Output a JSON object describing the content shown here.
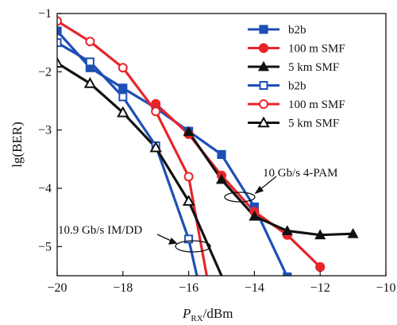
{
  "chart_data": {
    "type": "line",
    "title": "",
    "xlabel": {
      "main": "P",
      "sub": "RX",
      "rest": "/dBm"
    },
    "ylabel": "lg(BER)",
    "xlim": [
      -20,
      -10
    ],
    "ylim": [
      -5.5,
      -1
    ],
    "xticks": [
      -20,
      -18,
      -16,
      -14,
      -12,
      -10
    ],
    "yticks": [
      -1,
      -2,
      -3,
      -4,
      -5
    ],
    "grid": false,
    "legend": "top-right",
    "series": [
      {
        "name": "b2b",
        "color": "#1f4fb5",
        "marker": "square",
        "filled": true,
        "x": [
          -20,
          -19,
          -18,
          -17,
          -16,
          -15,
          -14,
          -13
        ],
        "y": [
          -1.3,
          -1.93,
          -2.28,
          -2.62,
          -3.02,
          -3.42,
          -4.32,
          -5.52
        ]
      },
      {
        "name": "100 m SMF",
        "color": "#e8242b",
        "marker": "circle",
        "filled": true,
        "x": [
          -17,
          -16,
          -15,
          -14,
          -13,
          -12
        ],
        "y": [
          -2.55,
          -3.07,
          -3.78,
          -4.4,
          -4.8,
          -5.35
        ]
      },
      {
        "name": "5 km SMF",
        "color": "#111111",
        "marker": "triangle",
        "filled": true,
        "x": [
          -16,
          -15,
          -14,
          -13,
          -12,
          -11
        ],
        "y": [
          -3.03,
          -3.85,
          -4.48,
          -4.73,
          -4.8,
          -4.78
        ]
      },
      {
        "name": "b2b",
        "color": "#1f4fb5",
        "marker": "square",
        "filled": false,
        "x": [
          -20,
          -19,
          -18,
          -17,
          -16
        ],
        "y": [
          -1.5,
          -1.83,
          -2.43,
          -3.27,
          -4.87
        ]
      },
      {
        "name": "100 m SMF",
        "color": "#e8242b",
        "marker": "circle",
        "filled": false,
        "x": [
          -20,
          -19,
          -18,
          -17,
          -16
        ],
        "y": [
          -1.13,
          -1.48,
          -1.93,
          -2.68,
          -3.8
        ]
      },
      {
        "name": "5 km SMF",
        "color": "#111111",
        "marker": "triangle",
        "filled": false,
        "x": [
          -20,
          -19,
          -18,
          -17,
          -16
        ],
        "y": [
          -1.85,
          -2.2,
          -2.7,
          -3.3,
          -4.22
        ]
      }
    ],
    "annotations": [
      {
        "text": "10 Gb/s 4-PAM"
      },
      {
        "text": "10.9 Gb/s IM/DD"
      }
    ]
  }
}
